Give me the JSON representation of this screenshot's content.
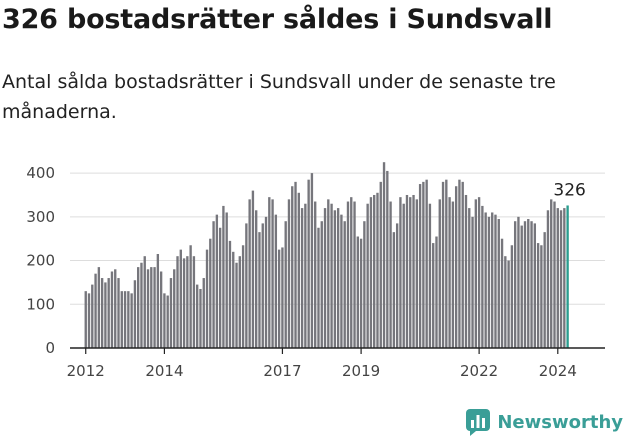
{
  "header": {
    "title": "326 bostadsrätter såldes i Sundsvall",
    "subtitle": "Antal sålda bostadsrätter i Sundsvall under de senaste tre månaderna."
  },
  "brand": {
    "name": "Newsworthy",
    "logo_icon": "bar-chart-logo-icon"
  },
  "colors": {
    "bar": "#76767c",
    "highlight": "#2a9d8f",
    "axis": "#222222",
    "grid": "#dddddd"
  },
  "chart_data": {
    "type": "bar",
    "ylim": [
      0,
      430
    ],
    "yticks": [
      0,
      100,
      200,
      300,
      400
    ],
    "xlim": [
      2011.6,
      2025.2
    ],
    "xticks": [
      {
        "value": 2012.0,
        "label": "2012"
      },
      {
        "value": 2014.0,
        "label": "2014"
      },
      {
        "value": 2017.0,
        "label": "2017"
      },
      {
        "value": 2019.0,
        "label": "2019"
      },
      {
        "value": 2022.0,
        "label": "2022"
      },
      {
        "value": 2024.0,
        "label": "2024"
      }
    ],
    "x_start": 2012.0,
    "x_step": 0.08333,
    "values": [
      130,
      125,
      145,
      170,
      185,
      160,
      150,
      160,
      175,
      180,
      160,
      130,
      130,
      130,
      125,
      155,
      185,
      195,
      210,
      180,
      185,
      185,
      215,
      175,
      125,
      120,
      160,
      180,
      210,
      225,
      205,
      210,
      235,
      210,
      145,
      135,
      160,
      225,
      250,
      290,
      305,
      275,
      325,
      310,
      245,
      220,
      195,
      210,
      235,
      285,
      340,
      360,
      315,
      265,
      285,
      300,
      345,
      340,
      305,
      225,
      230,
      290,
      340,
      370,
      380,
      355,
      320,
      330,
      385,
      400,
      335,
      275,
      290,
      320,
      340,
      330,
      315,
      320,
      305,
      290,
      335,
      345,
      335,
      255,
      250,
      290,
      330,
      345,
      350,
      355,
      380,
      425,
      405,
      335,
      265,
      285,
      345,
      330,
      350,
      345,
      350,
      340,
      375,
      380,
      385,
      330,
      240,
      255,
      340,
      380,
      385,
      345,
      335,
      370,
      385,
      380,
      350,
      320,
      300,
      340,
      345,
      325,
      310,
      300,
      310,
      305,
      295,
      250,
      210,
      200,
      235,
      290,
      300,
      280,
      290,
      295,
      290,
      285,
      240,
      235,
      265,
      315,
      340,
      335,
      320,
      315,
      320,
      326
    ],
    "last_label": "326"
  }
}
